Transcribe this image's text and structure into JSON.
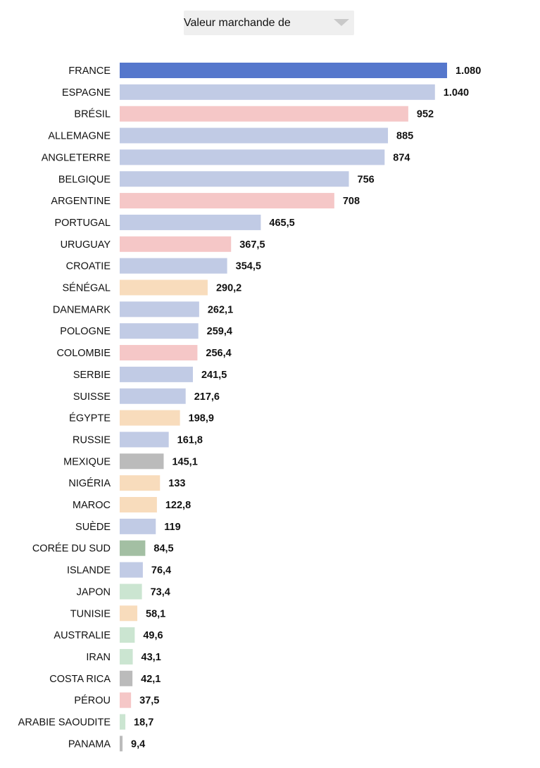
{
  "dropdown": {
    "label": "Valeur marchande de",
    "icon": "chevron-down-icon"
  },
  "chart_data": {
    "type": "bar",
    "orientation": "horizontal",
    "title": "",
    "xlabel": "",
    "ylabel": "",
    "grid": false,
    "xlim": [
      0,
      1080
    ],
    "categories": [
      "FRANCE",
      "ESPAGNE",
      "BRÉSIL",
      "ALLEMAGNE",
      "ANGLETERRE",
      "BELGIQUE",
      "ARGENTINE",
      "PORTUGAL",
      "URUGUAY",
      "CROATIE",
      "SÉNÉGAL",
      "DANEMARK",
      "POLOGNE",
      "COLOMBIE",
      "SERBIE",
      "SUISSE",
      "ÉGYPTE",
      "RUSSIE",
      "MEXIQUE",
      "NIGÉRIA",
      "MAROC",
      "SUÈDE",
      "CORÉE DU SUD",
      "ISLANDE",
      "JAPON",
      "TUNISIE",
      "AUSTRALIE",
      "IRAN",
      "COSTA RICA",
      "PÉROU",
      "ARABIE SAOUDITE",
      "PANAMA"
    ],
    "values": [
      1080,
      1040,
      952,
      885,
      874,
      756,
      708,
      465.5,
      367.5,
      354.5,
      290.2,
      262.1,
      259.4,
      256.4,
      241.5,
      217.6,
      198.9,
      161.8,
      145.1,
      133,
      122.8,
      119,
      84.5,
      76.4,
      73.4,
      58.1,
      49.6,
      43.1,
      42.1,
      37.5,
      18.7,
      9.4
    ],
    "value_labels": [
      "1.080",
      "1.040",
      "952",
      "885",
      "874",
      "756",
      "708",
      "465,5",
      "367,5",
      "354,5",
      "290,2",
      "262,1",
      "259,4",
      "256,4",
      "241,5",
      "217,6",
      "198,9",
      "161,8",
      "145,1",
      "133",
      "122,8",
      "119",
      "84,5",
      "76,4",
      "73,4",
      "58,1",
      "49,6",
      "43,1",
      "42,1",
      "37,5",
      "18,7",
      "9,4"
    ],
    "colors": [
      "#5577cc",
      "#c1cbe5",
      "#f5c7c7",
      "#c1cbe5",
      "#c1cbe5",
      "#c1cbe5",
      "#f5c7c7",
      "#c1cbe5",
      "#f5c7c7",
      "#c1cbe5",
      "#f8dcbc",
      "#c1cbe5",
      "#c1cbe5",
      "#f5c7c7",
      "#c1cbe5",
      "#c1cbe5",
      "#f8dcbc",
      "#c1cbe5",
      "#bbbbbb",
      "#f8dcbc",
      "#f8dcbc",
      "#c1cbe5",
      "#a3bfa3",
      "#c1cbe5",
      "#cbe5d1",
      "#f8dcbc",
      "#cbe5d1",
      "#cbe5d1",
      "#bbbbbb",
      "#f5c7c7",
      "#cbe5d1",
      "#bbbbbb"
    ]
  }
}
